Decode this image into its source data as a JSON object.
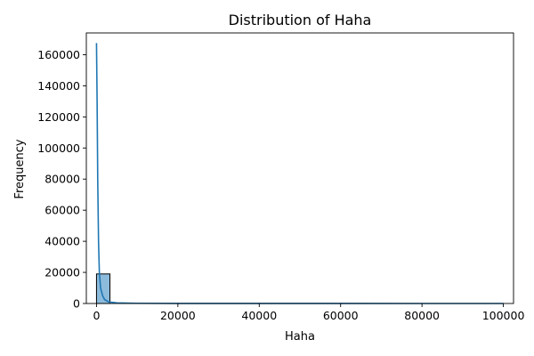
{
  "chart_data": {
    "type": "bar",
    "title": "Distribution of Haha",
    "xlabel": "Haha",
    "ylabel": "Frequency",
    "xlim": [
      -2500,
      102500
    ],
    "ylim": [
      0,
      174000
    ],
    "xticks": [
      0,
      20000,
      40000,
      60000,
      80000,
      100000
    ],
    "yticks": [
      0,
      20000,
      40000,
      60000,
      80000,
      100000,
      120000,
      140000,
      160000
    ],
    "bins": [
      {
        "x0": 0,
        "x1": 3300,
        "count": 19000
      },
      {
        "x0": 3300,
        "x1": 100000,
        "count": 0
      }
    ],
    "kde": {
      "x": [
        0,
        150,
        300,
        500,
        700,
        1000,
        1500,
        2000,
        3000,
        5000,
        10000,
        20000,
        40000,
        60000,
        80000,
        100000
      ],
      "y": [
        167500,
        130000,
        80000,
        40000,
        20000,
        10000,
        5000,
        2500,
        1000,
        400,
        150,
        60,
        30,
        15,
        8,
        0
      ]
    },
    "colors": {
      "bar_fill": "#8dbbdc",
      "bar_edge": "#000000",
      "kde_line": "#1f77b4"
    },
    "grid": false,
    "legend": "none"
  }
}
